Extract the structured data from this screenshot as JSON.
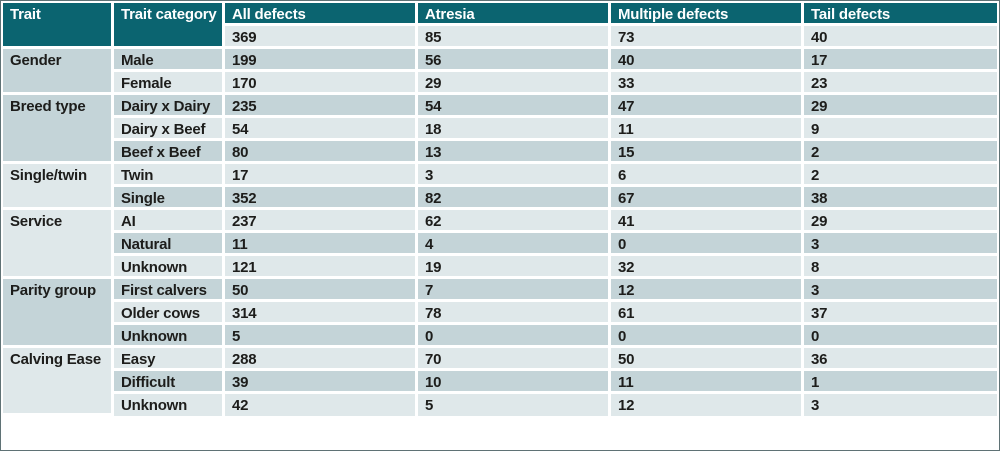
{
  "colors": {
    "header_bg": "#0b6470",
    "header_text": "#ffffff",
    "row_dark": "#c4d4d8",
    "row_light": "#dfe8ea",
    "body_text": "#1d1d1b",
    "separator": "#ffffff",
    "outer_border": "#5f7275"
  },
  "chart_data": {
    "type": "table",
    "columns": [
      "Trait",
      "Trait category",
      "All defects",
      "Atresia",
      "Multiple defects",
      "Tail defects"
    ],
    "totals_row": {
      "values": [
        "369",
        "85",
        "73",
        "40"
      ],
      "shade": "light"
    },
    "groups": [
      {
        "trait": "Gender",
        "trait_shade": "dark",
        "rows": [
          {
            "category": "Male",
            "values": [
              "199",
              "56",
              "40",
              "17"
            ],
            "shade": "dark"
          },
          {
            "category": "Female",
            "values": [
              "170",
              "29",
              "33",
              "23"
            ],
            "shade": "light"
          }
        ]
      },
      {
        "trait": "Breed type",
        "trait_shade": "dark",
        "rows": [
          {
            "category": "Dairy x Dairy",
            "values": [
              "235",
              "54",
              "47",
              "29"
            ],
            "shade": "dark"
          },
          {
            "category": "Dairy x Beef",
            "values": [
              "54",
              "18",
              "11",
              "9"
            ],
            "shade": "light"
          },
          {
            "category": "Beef x Beef",
            "values": [
              "80",
              "13",
              "15",
              "2"
            ],
            "shade": "dark"
          }
        ]
      },
      {
        "trait": "Single/twin",
        "trait_shade": "light",
        "rows": [
          {
            "category": "Twin",
            "values": [
              "17",
              "3",
              "6",
              "2"
            ],
            "shade": "light"
          },
          {
            "category": "Single",
            "values": [
              "352",
              "82",
              "67",
              "38"
            ],
            "shade": "dark"
          }
        ]
      },
      {
        "trait": "Service",
        "trait_shade": "light",
        "rows": [
          {
            "category": "AI",
            "values": [
              "237",
              "62",
              "41",
              "29"
            ],
            "shade": "light"
          },
          {
            "category": "Natural",
            "values": [
              "11",
              "4",
              "0",
              "3"
            ],
            "shade": "dark"
          },
          {
            "category": "Unknown",
            "values": [
              "121",
              "19",
              "32",
              "8"
            ],
            "shade": "light"
          }
        ]
      },
      {
        "trait": "Parity group",
        "trait_shade": "dark",
        "rows": [
          {
            "category": "First calvers",
            "values": [
              "50",
              "7",
              "12",
              "3"
            ],
            "shade": "dark"
          },
          {
            "category": "Older cows",
            "values": [
              "314",
              "78",
              "61",
              "37"
            ],
            "shade": "light"
          },
          {
            "category": "Unknown",
            "values": [
              "5",
              "0",
              "0",
              "0"
            ],
            "shade": "dark"
          }
        ]
      },
      {
        "trait": "Calving Ease",
        "trait_shade": "light",
        "rows": [
          {
            "category": "Easy",
            "values": [
              "288",
              "70",
              "50",
              "36"
            ],
            "shade": "light"
          },
          {
            "category": "Difficult",
            "values": [
              "39",
              "10",
              "11",
              "1"
            ],
            "shade": "dark"
          },
          {
            "category": "Unknown",
            "values": [
              "42",
              "5",
              "12",
              "3"
            ],
            "shade": "light"
          }
        ]
      }
    ]
  }
}
